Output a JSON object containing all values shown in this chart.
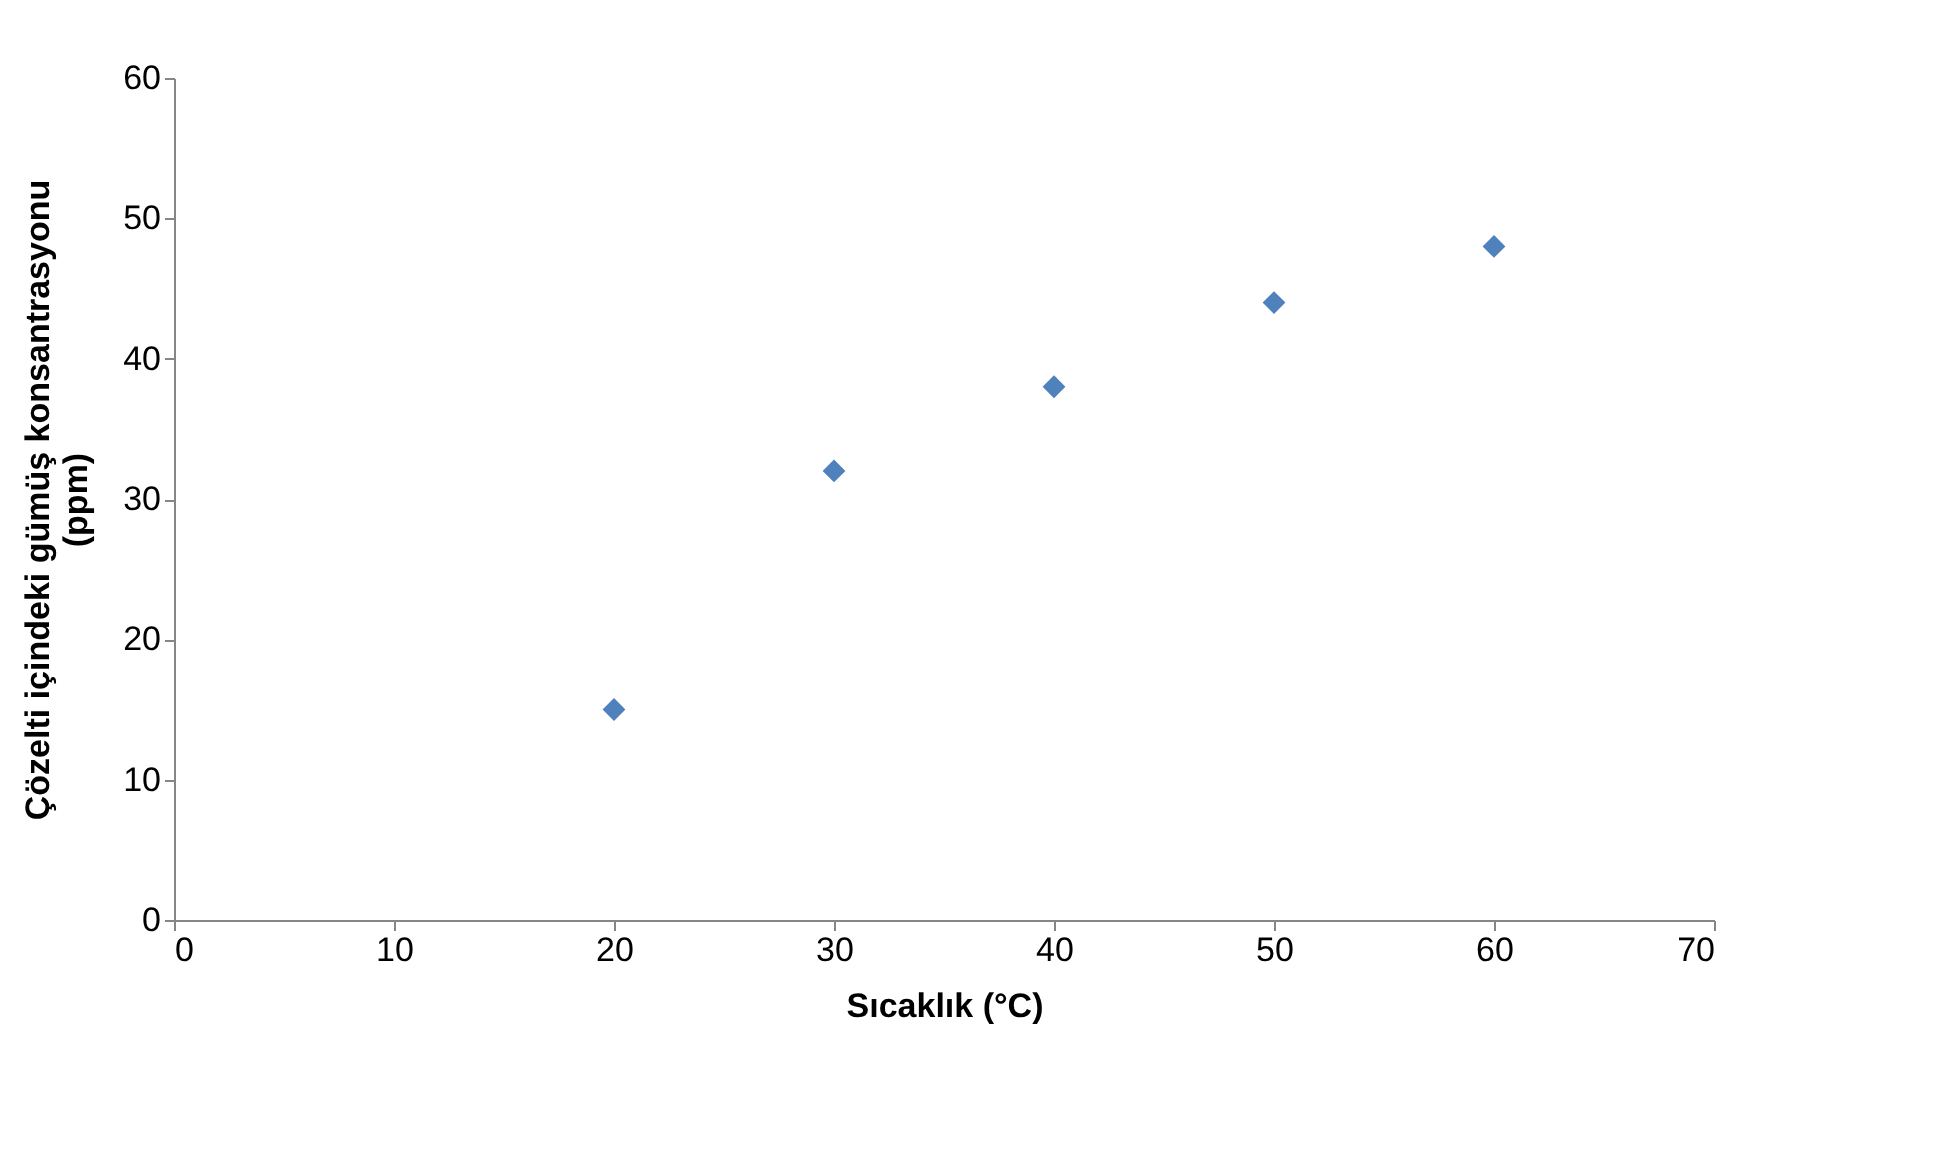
{
  "chart_data": {
    "type": "scatter",
    "xlabel": "Sıcaklık (°C)",
    "ylabel": "Çözelti içindeki gümüş konsantrasyonu\n(ppm)",
    "x": [
      20,
      30,
      40,
      50,
      60
    ],
    "series": [
      {
        "color": "#4f81bd",
        "values": [
          15,
          32,
          38,
          44,
          48
        ]
      }
    ],
    "xlim": [
      0,
      70
    ],
    "xticks": [
      0,
      10,
      20,
      30,
      40,
      50,
      60,
      70
    ],
    "ylim": [
      0,
      60
    ],
    "yticks": [
      0,
      10,
      20,
      30,
      40,
      50,
      60
    ],
    "marker": "diamond",
    "grid": false,
    "legend": false
  }
}
